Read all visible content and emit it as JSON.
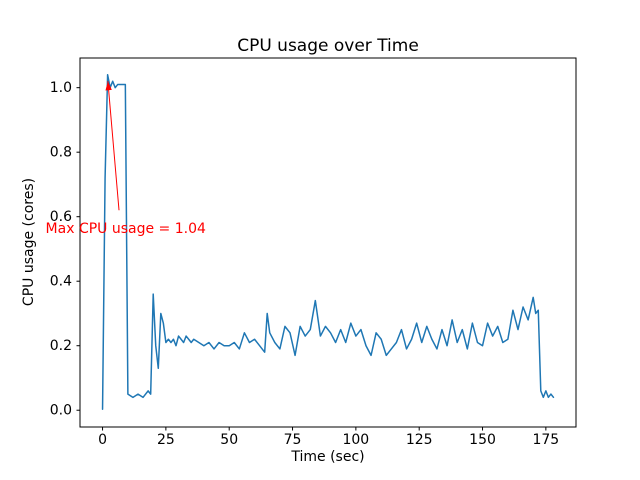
{
  "chart_data": {
    "type": "line",
    "title": "CPU usage over Time",
    "xlabel": "Time (sec)",
    "ylabel": "CPU usage (cores)",
    "xlim": [
      -8.9,
      186.9
    ],
    "ylim": [
      -0.052,
      1.092
    ],
    "xticks": [
      0,
      25,
      50,
      75,
      100,
      125,
      150,
      175
    ],
    "xtick_labels": [
      "0",
      "25",
      "50",
      "75",
      "100",
      "125",
      "150",
      "175"
    ],
    "yticks": [
      0.0,
      0.2,
      0.4,
      0.6,
      0.8,
      1.0
    ],
    "ytick_labels": [
      "0.0",
      "0.2",
      "0.4",
      "0.6",
      "0.8",
      "1.0"
    ],
    "grid": false,
    "legend": null,
    "line_color": "#1f77b4",
    "line_width": 1.5,
    "axes_color": "#000000",
    "background_color": "#ffffff",
    "max_value": 1.04,
    "points": [
      [
        0,
        0.003
      ],
      [
        1,
        0.72
      ],
      [
        2,
        1.04
      ],
      [
        3,
        1.0
      ],
      [
        4,
        1.02
      ],
      [
        5,
        1.0
      ],
      [
        6,
        1.01
      ],
      [
        7,
        1.01
      ],
      [
        8,
        1.01
      ],
      [
        9,
        1.01
      ],
      [
        10,
        0.05
      ],
      [
        12,
        0.04
      ],
      [
        14,
        0.05
      ],
      [
        16,
        0.04
      ],
      [
        18,
        0.06
      ],
      [
        19,
        0.05
      ],
      [
        20,
        0.36
      ],
      [
        21,
        0.2
      ],
      [
        22,
        0.13
      ],
      [
        23,
        0.3
      ],
      [
        24,
        0.27
      ],
      [
        25,
        0.21
      ],
      [
        26,
        0.22
      ],
      [
        27,
        0.21
      ],
      [
        28,
        0.22
      ],
      [
        29,
        0.2
      ],
      [
        30,
        0.23
      ],
      [
        31,
        0.22
      ],
      [
        32,
        0.21
      ],
      [
        33,
        0.23
      ],
      [
        34,
        0.22
      ],
      [
        35,
        0.21
      ],
      [
        36,
        0.22
      ],
      [
        38,
        0.21
      ],
      [
        40,
        0.2
      ],
      [
        42,
        0.21
      ],
      [
        44,
        0.19
      ],
      [
        46,
        0.21
      ],
      [
        48,
        0.2
      ],
      [
        50,
        0.2
      ],
      [
        52,
        0.21
      ],
      [
        54,
        0.19
      ],
      [
        56,
        0.24
      ],
      [
        58,
        0.21
      ],
      [
        60,
        0.22
      ],
      [
        62,
        0.2
      ],
      [
        64,
        0.18
      ],
      [
        65,
        0.3
      ],
      [
        66,
        0.24
      ],
      [
        68,
        0.21
      ],
      [
        70,
        0.19
      ],
      [
        72,
        0.26
      ],
      [
        74,
        0.24
      ],
      [
        76,
        0.17
      ],
      [
        78,
        0.26
      ],
      [
        80,
        0.23
      ],
      [
        82,
        0.25
      ],
      [
        84,
        0.34
      ],
      [
        86,
        0.23
      ],
      [
        88,
        0.26
      ],
      [
        90,
        0.24
      ],
      [
        92,
        0.21
      ],
      [
        94,
        0.25
      ],
      [
        96,
        0.21
      ],
      [
        98,
        0.27
      ],
      [
        100,
        0.23
      ],
      [
        102,
        0.25
      ],
      [
        104,
        0.2
      ],
      [
        106,
        0.17
      ],
      [
        108,
        0.24
      ],
      [
        110,
        0.22
      ],
      [
        112,
        0.17
      ],
      [
        114,
        0.19
      ],
      [
        116,
        0.21
      ],
      [
        118,
        0.25
      ],
      [
        120,
        0.19
      ],
      [
        122,
        0.22
      ],
      [
        124,
        0.27
      ],
      [
        126,
        0.21
      ],
      [
        128,
        0.26
      ],
      [
        130,
        0.22
      ],
      [
        132,
        0.19
      ],
      [
        134,
        0.25
      ],
      [
        136,
        0.2
      ],
      [
        138,
        0.28
      ],
      [
        140,
        0.21
      ],
      [
        142,
        0.25
      ],
      [
        144,
        0.19
      ],
      [
        146,
        0.27
      ],
      [
        148,
        0.21
      ],
      [
        150,
        0.2
      ],
      [
        152,
        0.27
      ],
      [
        154,
        0.23
      ],
      [
        156,
        0.26
      ],
      [
        158,
        0.21
      ],
      [
        160,
        0.22
      ],
      [
        162,
        0.31
      ],
      [
        164,
        0.25
      ],
      [
        166,
        0.32
      ],
      [
        168,
        0.28
      ],
      [
        170,
        0.35
      ],
      [
        171,
        0.3
      ],
      [
        172,
        0.31
      ],
      [
        173,
        0.06
      ],
      [
        174,
        0.04
      ],
      [
        175,
        0.06
      ],
      [
        176,
        0.04
      ],
      [
        177,
        0.05
      ],
      [
        178,
        0.04
      ]
    ],
    "annotation": {
      "text": "Max CPU usage = 1.04",
      "color": "#ff0000",
      "text_xy": [
        -22.5,
        0.55
      ],
      "arrow_tail_xy": [
        6.5,
        0.62
      ],
      "arrow_head_xy": [
        2.1,
        1.02
      ]
    }
  }
}
